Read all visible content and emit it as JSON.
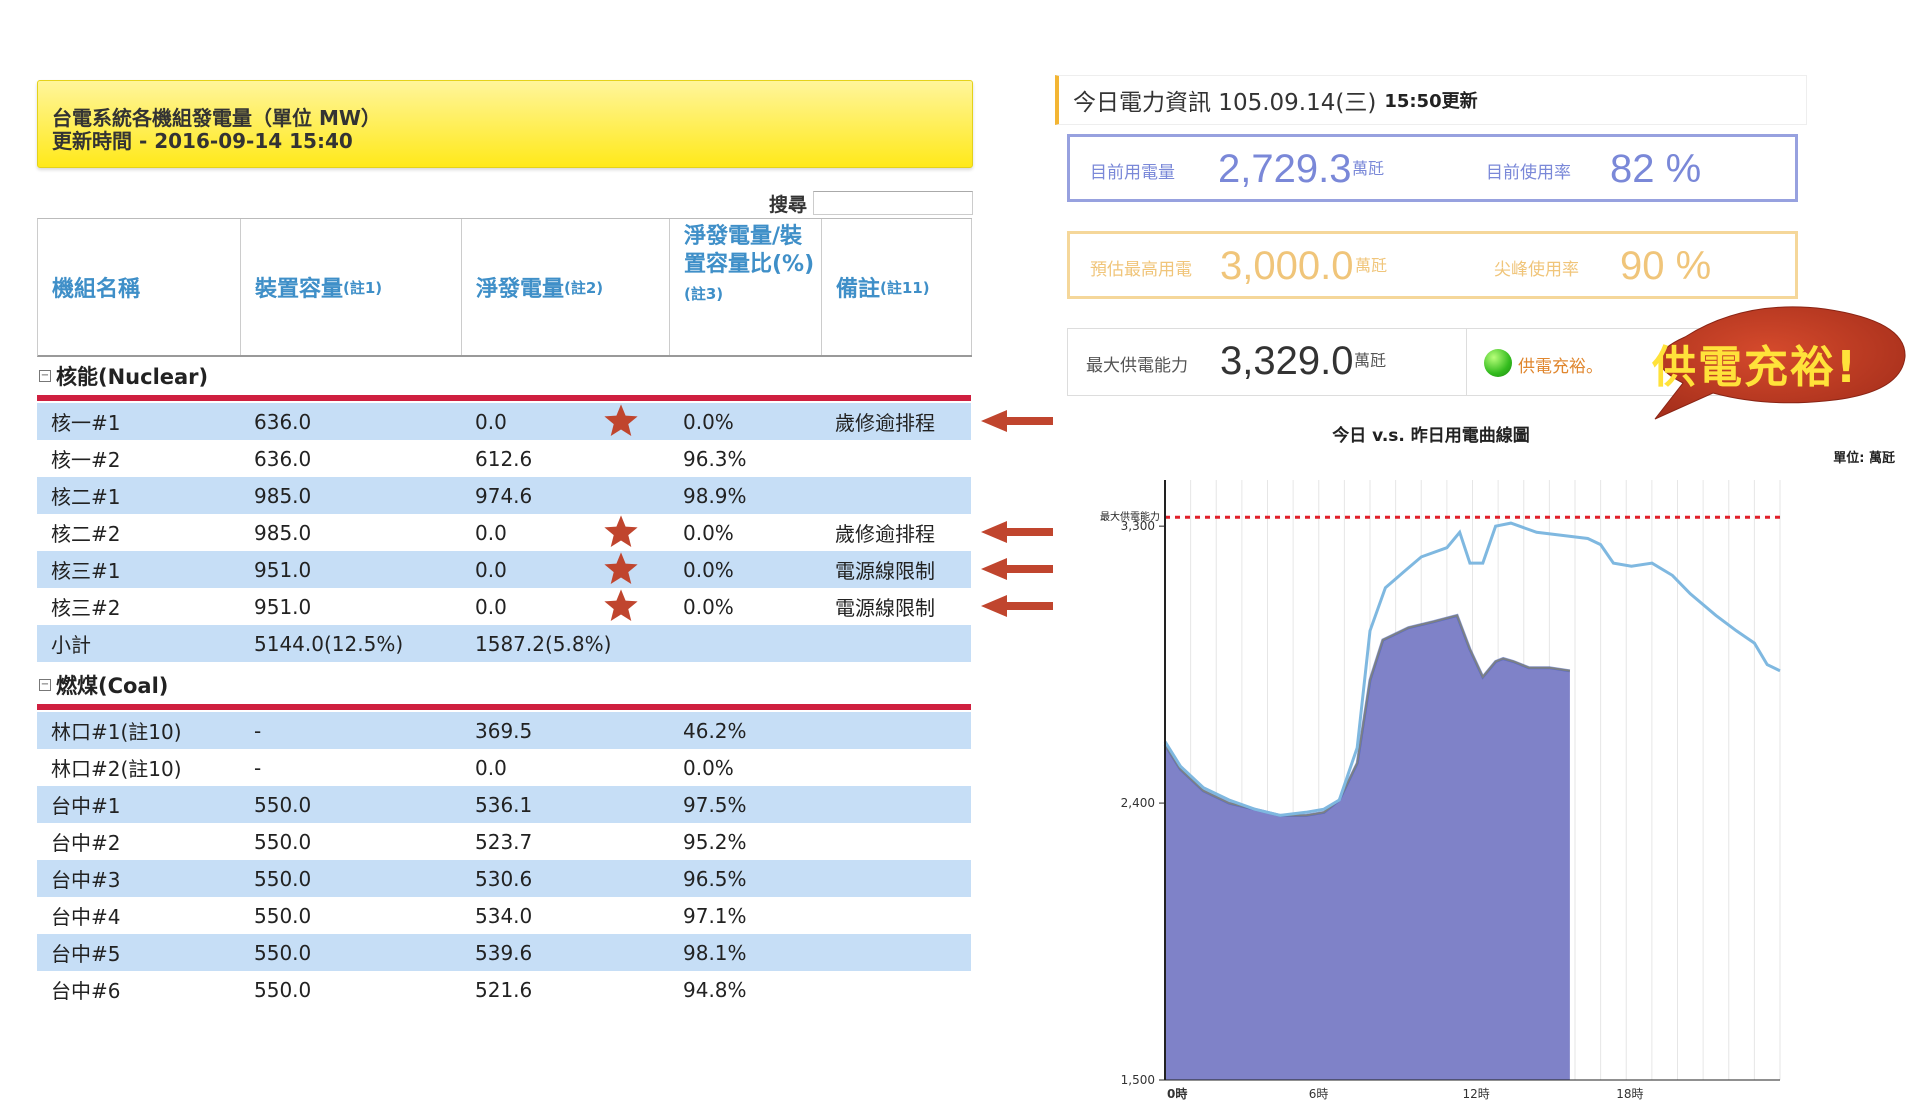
{
  "left": {
    "title_line1": "台電系統各機組發電量（單位 MW）",
    "title_line2": "更新時間 - 2016-09-14 15:40",
    "search_label": "搜尋",
    "search_value": "",
    "headers": {
      "name": "機組名稱",
      "capacity": "裝置容量",
      "capacity_note": "(註1)",
      "net": "淨發電量",
      "net_note": "(註2)",
      "ratio": "淨發電量/裝置容量比(%)",
      "ratio_note": "(註3)",
      "remark": "備註",
      "remark_note": "(註11)"
    },
    "groups": [
      {
        "title": "核能(Nuclear)",
        "rows": [
          {
            "name": "核一#1",
            "capacity": "636.0",
            "net": "0.0",
            "ratio": "0.0%",
            "remark": "歲修逾排程",
            "starred": true
          },
          {
            "name": "核一#2",
            "capacity": "636.0",
            "net": "612.6",
            "ratio": "96.3%",
            "remark": "",
            "starred": false
          },
          {
            "name": "核二#1",
            "capacity": "985.0",
            "net": "974.6",
            "ratio": "98.9%",
            "remark": "",
            "starred": false
          },
          {
            "name": "核二#2",
            "capacity": "985.0",
            "net": "0.0",
            "ratio": "0.0%",
            "remark": "歲修逾排程",
            "starred": true
          },
          {
            "name": "核三#1",
            "capacity": "951.0",
            "net": "0.0",
            "ratio": "0.0%",
            "remark": "電源線限制",
            "starred": true
          },
          {
            "name": "核三#2",
            "capacity": "951.0",
            "net": "0.0",
            "ratio": "0.0%",
            "remark": "電源線限制",
            "starred": true
          },
          {
            "name": "小計",
            "capacity": "5144.0(12.5%)",
            "net": "1587.2(5.8%)",
            "ratio": "",
            "remark": "",
            "starred": false
          }
        ]
      },
      {
        "title": "燃煤(Coal)",
        "rows": [
          {
            "name": "林口#1(註10)",
            "capacity": "-",
            "net": "369.5",
            "ratio": "46.2%",
            "remark": "",
            "starred": false
          },
          {
            "name": "林口#2(註10)",
            "capacity": "-",
            "net": "0.0",
            "ratio": "0.0%",
            "remark": "",
            "starred": false
          },
          {
            "name": "台中#1",
            "capacity": "550.0",
            "net": "536.1",
            "ratio": "97.5%",
            "remark": "",
            "starred": false
          },
          {
            "name": "台中#2",
            "capacity": "550.0",
            "net": "523.7",
            "ratio": "95.2%",
            "remark": "",
            "starred": false
          },
          {
            "name": "台中#3",
            "capacity": "550.0",
            "net": "530.6",
            "ratio": "96.5%",
            "remark": "",
            "starred": false
          },
          {
            "name": "台中#4",
            "capacity": "550.0",
            "net": "534.0",
            "ratio": "97.1%",
            "remark": "",
            "starred": false
          },
          {
            "name": "台中#5",
            "capacity": "550.0",
            "net": "539.6",
            "ratio": "98.1%",
            "remark": "",
            "starred": false
          },
          {
            "name": "台中#6",
            "capacity": "550.0",
            "net": "521.6",
            "ratio": "94.8%",
            "remark": "",
            "starred": false
          }
        ]
      }
    ]
  },
  "right": {
    "header_title": "今日電力資訊 105.09.14(三)",
    "header_updated": "15:50更新",
    "current_usage_label": "目前用電量",
    "current_usage_value": "2,729.3",
    "current_usage_unit": "萬瓩",
    "current_rate_label": "目前使用率",
    "current_rate_value": "82 %",
    "peak_forecast_label": "預估最高用電",
    "peak_forecast_value": "3,000.0",
    "peak_forecast_unit": "萬瓩",
    "peak_rate_label": "尖峰使用率",
    "peak_rate_value": "90 %",
    "max_supply_label": "最大供電能力",
    "max_supply_value": "3,329.0",
    "max_supply_unit": "萬瓩",
    "supply_status": "供電充裕。",
    "callout": "供電充裕!",
    "colors": {
      "status_light": "#33bb1e",
      "callout": "#b83a22",
      "accent": "#f3b533"
    }
  },
  "chart_data": {
    "type": "area",
    "title": "今日 v.s. 昨日用電曲線圖",
    "unit_label": "單位: 萬瓩",
    "ylim": [
      1500,
      3450
    ],
    "y_ticks": [
      1500,
      2400,
      3300
    ],
    "y_tick_labels": [
      "1,500",
      "2,400",
      "3,300"
    ],
    "x_ticks": [
      0,
      6,
      12,
      18
    ],
    "x_tick_labels": [
      "0時",
      "6時",
      "12時",
      "18時"
    ],
    "xlim": [
      0,
      24
    ],
    "reference_line": {
      "label": "最大供電能力",
      "value": 3329
    },
    "series": [
      {
        "name": "今日",
        "color": "#7f82c8",
        "values": [
          [
            0,
            2590
          ],
          [
            0.6,
            2510
          ],
          [
            1.5,
            2440
          ],
          [
            2.5,
            2400
          ],
          [
            3.5,
            2380
          ],
          [
            4.5,
            2360
          ],
          [
            5.5,
            2360
          ],
          [
            6.2,
            2370
          ],
          [
            6.8,
            2410
          ],
          [
            7.5,
            2530
          ],
          [
            8,
            2800
          ],
          [
            8.5,
            2930
          ],
          [
            9.5,
            2970
          ],
          [
            10.5,
            2990
          ],
          [
            11.4,
            3010
          ],
          [
            11.9,
            2900
          ],
          [
            12.4,
            2810
          ],
          [
            12.9,
            2860
          ],
          [
            13.2,
            2870
          ],
          [
            13.6,
            2860
          ],
          [
            14.2,
            2840
          ],
          [
            15,
            2840
          ],
          [
            15.8,
            2830
          ]
        ]
      },
      {
        "name": "昨日",
        "color": "#7fb8e0",
        "values": [
          [
            0,
            2600
          ],
          [
            0.6,
            2520
          ],
          [
            1.5,
            2450
          ],
          [
            2.5,
            2410
          ],
          [
            3.5,
            2380
          ],
          [
            4.5,
            2360
          ],
          [
            5.5,
            2370
          ],
          [
            6.2,
            2380
          ],
          [
            6.8,
            2410
          ],
          [
            7.5,
            2580
          ],
          [
            8,
            2960
          ],
          [
            8.6,
            3100
          ],
          [
            9.3,
            3150
          ],
          [
            10,
            3200
          ],
          [
            11,
            3230
          ],
          [
            11.5,
            3280
          ],
          [
            11.9,
            3180
          ],
          [
            12.4,
            3180
          ],
          [
            12.9,
            3300
          ],
          [
            13.5,
            3310
          ],
          [
            14.5,
            3280
          ],
          [
            15.5,
            3270
          ],
          [
            16.5,
            3260
          ],
          [
            17,
            3240
          ],
          [
            17.5,
            3180
          ],
          [
            18.2,
            3170
          ],
          [
            19,
            3180
          ],
          [
            19.8,
            3140
          ],
          [
            20.5,
            3080
          ],
          [
            21.5,
            3010
          ],
          [
            22.3,
            2960
          ],
          [
            23,
            2920
          ],
          [
            23.5,
            2850
          ],
          [
            24,
            2830
          ]
        ]
      }
    ]
  }
}
